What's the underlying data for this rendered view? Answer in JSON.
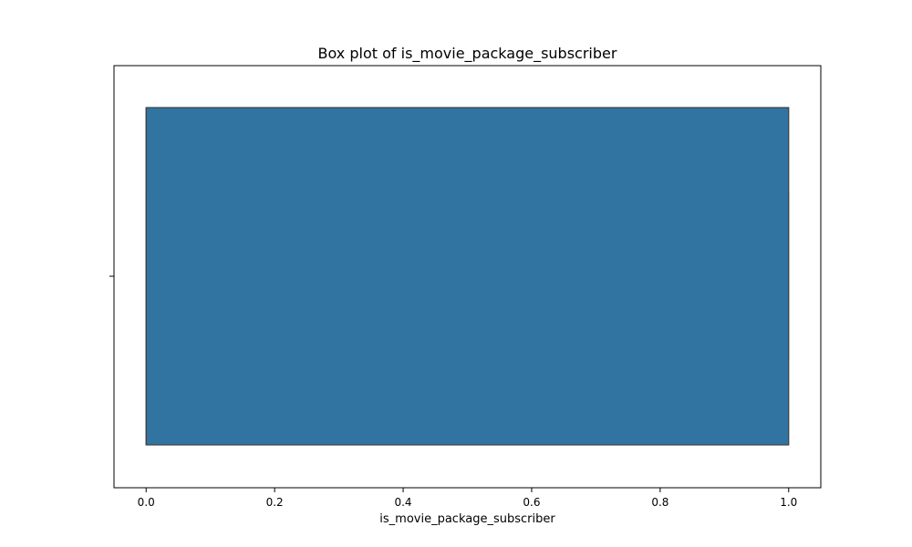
{
  "chart_data": {
    "type": "box",
    "orientation": "horizontal",
    "title": "Box plot of is_movie_package_subscriber",
    "xlabel": "is_movie_package_subscriber",
    "ylabel": "",
    "xlim": [
      -0.05,
      1.05
    ],
    "xticks": [
      0.0,
      0.2,
      0.4,
      0.6,
      0.8,
      1.0
    ],
    "xtick_labels": [
      "0.0",
      "0.2",
      "0.4",
      "0.6",
      "0.8",
      "1.0"
    ],
    "grid": false,
    "series": [
      {
        "min": 0.0,
        "q1": 0.0,
        "median": 0.0,
        "q3": 1.0,
        "max": 1.0
      }
    ],
    "colors": {
      "box_fill": "#3274a1",
      "box_edge": "#3f3f3f",
      "axis": "#000000"
    }
  }
}
